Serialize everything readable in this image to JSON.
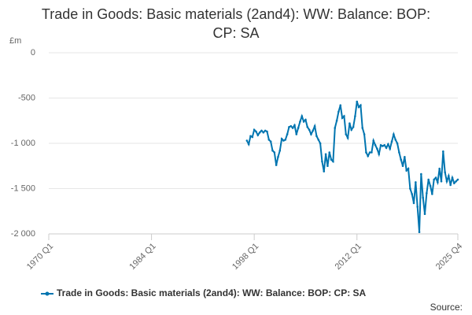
{
  "chart_data": {
    "type": "line",
    "title": "Trade in Goods: Basic materials (2and4): WW: Balance: BOP: CP: SA",
    "y_label": "£m",
    "source": "Source:",
    "categories": [
      "1970 Q1",
      null,
      null,
      null,
      null,
      null,
      null,
      null,
      null,
      null,
      null,
      null,
      null,
      null,
      null,
      null,
      null,
      null,
      null,
      null,
      null,
      null,
      null,
      null,
      null,
      null,
      null,
      null,
      null,
      null,
      null,
      null,
      null,
      null,
      null,
      null,
      null,
      null,
      null,
      null,
      null,
      null,
      null,
      null,
      null,
      null,
      null,
      null,
      null,
      null,
      null,
      null,
      null,
      null,
      null,
      null,
      "1984 Q1",
      null,
      null,
      null,
      null,
      null,
      null,
      null,
      null,
      null,
      null,
      null,
      null,
      null,
      null,
      null,
      null,
      null,
      null,
      null,
      null,
      null,
      null,
      null,
      null,
      null,
      null,
      null,
      null,
      null,
      null,
      null,
      null,
      null,
      null,
      null,
      null,
      null,
      null,
      null,
      null,
      null,
      null,
      null,
      null,
      null,
      null,
      null,
      null,
      null,
      null,
      null,
      null,
      null,
      null,
      null,
      "1998 Q1",
      null,
      null,
      null,
      null,
      null,
      null,
      null,
      null,
      null,
      null,
      null,
      null,
      null,
      null,
      null,
      null,
      null,
      null,
      null,
      null,
      null,
      null,
      null,
      null,
      null,
      null,
      null,
      null,
      null,
      null,
      null,
      null,
      null,
      null,
      null,
      null,
      null,
      null,
      null,
      null,
      null,
      null,
      null,
      null,
      null,
      null,
      null,
      null,
      null,
      null,
      null,
      null,
      null,
      null,
      null,
      "2012 Q1",
      null,
      null,
      null,
      null,
      null,
      null,
      null,
      null,
      null,
      null,
      null,
      null,
      null,
      null,
      null,
      null,
      null,
      null,
      null,
      null,
      null,
      null,
      null,
      null,
      null,
      null,
      null,
      null,
      null,
      null,
      null,
      null,
      null,
      null,
      null,
      null,
      null,
      null,
      null,
      null,
      null,
      null,
      null,
      null,
      null,
      null,
      null,
      null,
      null,
      null,
      null,
      null,
      null,
      null,
      "2025 Q4"
    ],
    "series": [
      {
        "name": "Trade in Goods: Basic materials (2and4): WW: Balance: BOP: CP: SA",
        "color": "#0075b0",
        "values": [
          null,
          null,
          null,
          null,
          null,
          null,
          null,
          null,
          null,
          null,
          null,
          null,
          null,
          null,
          null,
          null,
          null,
          null,
          null,
          null,
          null,
          null,
          null,
          null,
          null,
          null,
          null,
          null,
          null,
          null,
          null,
          null,
          null,
          null,
          null,
          null,
          null,
          null,
          null,
          null,
          null,
          null,
          null,
          null,
          null,
          null,
          null,
          null,
          null,
          null,
          null,
          null,
          null,
          null,
          null,
          null,
          null,
          null,
          null,
          null,
          null,
          null,
          null,
          null,
          null,
          null,
          null,
          null,
          null,
          null,
          null,
          null,
          null,
          null,
          null,
          null,
          null,
          null,
          null,
          null,
          null,
          null,
          null,
          null,
          null,
          null,
          null,
          null,
          null,
          null,
          null,
          null,
          null,
          null,
          null,
          null,
          null,
          null,
          null,
          null,
          null,
          null,
          null,
          null,
          null,
          null,
          null,
          null,
          -970,
          -1010,
          -920,
          -930,
          -850,
          -870,
          -910,
          -880,
          -860,
          -880,
          -860,
          -870,
          -960,
          -980,
          -1080,
          -1100,
          -1240,
          -1150,
          -1080,
          -950,
          -970,
          -960,
          -900,
          -820,
          -810,
          -830,
          -800,
          -900,
          -830,
          -760,
          -700,
          -760,
          -740,
          -820,
          -850,
          -900,
          -860,
          -810,
          -920,
          -960,
          -1000,
          -1200,
          -1310,
          -1120,
          -1250,
          -1100,
          -1180,
          -1200,
          -830,
          -750,
          -650,
          -580,
          -720,
          -700,
          -900,
          -940,
          -780,
          -850,
          -820,
          -700,
          -540,
          -600,
          -580,
          -830,
          -900,
          -1100,
          -1140,
          -1100,
          -1100,
          -970,
          -1020,
          -1060,
          -1120,
          -1020,
          -1030,
          -1020,
          -1050,
          -1010,
          -1060,
          -980,
          -900,
          -960,
          -1000,
          -1100,
          -1180,
          -1250,
          -1150,
          -1300,
          -1280,
          -1500,
          -1560,
          -1660,
          -1430,
          -1700,
          -1980,
          -1340,
          -1600,
          -1780,
          -1550,
          -1400,
          -1470,
          -1560,
          -1400,
          -1380,
          -1430,
          -1280,
          -1420,
          -1090,
          -1320,
          -1420,
          -1360,
          -1460,
          -1380,
          -1440,
          -1420,
          -1400
        ]
      }
    ],
    "ylim": [
      -2000,
      0
    ],
    "yticks": [
      {
        "value": -2000,
        "label": "-2 000"
      },
      {
        "value": -1500,
        "label": "-1 500"
      },
      {
        "value": -1000,
        "label": "-1 000"
      },
      -500,
      0
    ],
    "grid": true
  }
}
